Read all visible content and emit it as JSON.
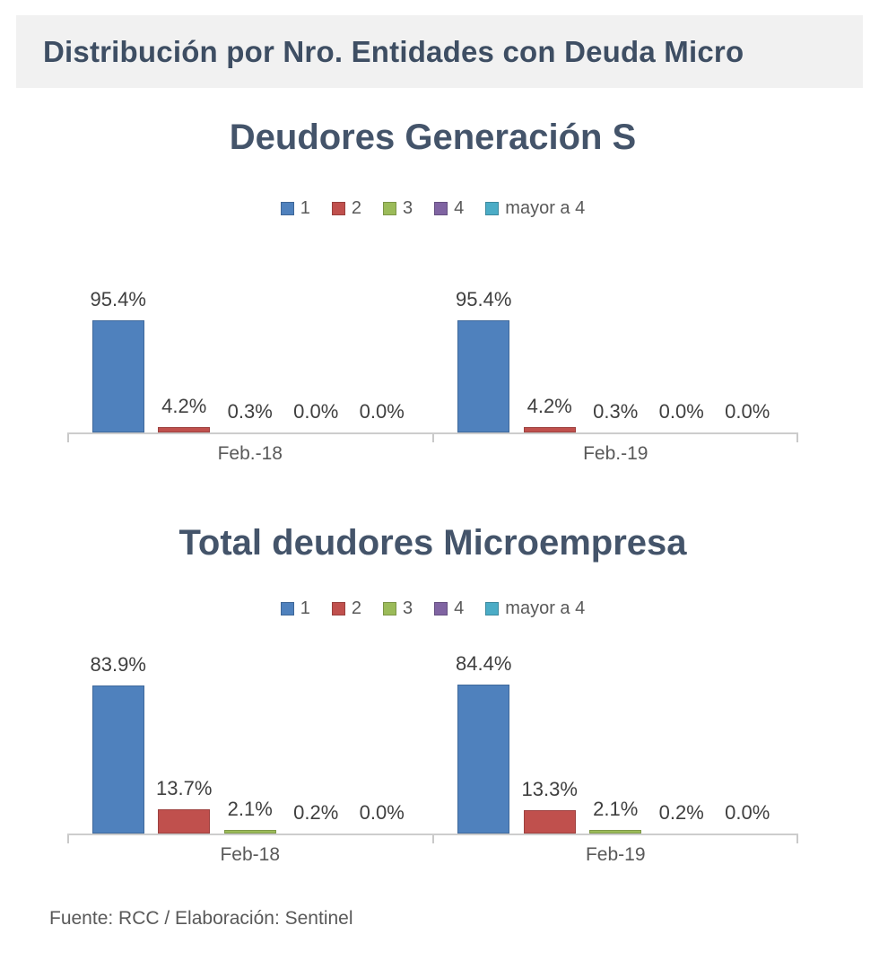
{
  "header": {
    "title": "Distribución por Nro. Entidades con Deuda Micro"
  },
  "footer": {
    "text": "Fuente: RCC / Elaboración: Sentinel"
  },
  "colors": {
    "header_text": "#3E4E63",
    "title_text": "#44546A",
    "axis": "#CDCDCD",
    "series": [
      "#4F81BD",
      "#C0504D",
      "#9BBB59",
      "#8064A2",
      "#4BACC6"
    ]
  },
  "chart_data": [
    {
      "type": "bar",
      "title": "Deudores Generación S",
      "categories": [
        "Feb.-18",
        "Feb.-19"
      ],
      "series": [
        {
          "name": "1",
          "color": "#4F81BD",
          "values": [
            95.4,
            95.4
          ]
        },
        {
          "name": "2",
          "color": "#C0504D",
          "values": [
            4.2,
            4.2
          ]
        },
        {
          "name": "3",
          "color": "#9BBB59",
          "values": [
            0.3,
            0.3
          ]
        },
        {
          "name": "4",
          "color": "#8064A2",
          "values": [
            0.0,
            0.0
          ]
        },
        {
          "name": "mayor a 4",
          "color": "#4BACC6",
          "values": [
            0.0,
            0.0
          ]
        }
      ],
      "labels": [
        [
          "95.4%",
          "4.2%",
          "0.3%",
          "0.0%",
          "0.0%"
        ],
        [
          "95.4%",
          "4.2%",
          "0.3%",
          "0.0%",
          "0.0%"
        ]
      ],
      "ylim": [
        0,
        100
      ],
      "grid": false,
      "legend_position": "top",
      "value_unit": "%"
    },
    {
      "type": "bar",
      "title": "Total deudores Microempresa",
      "categories": [
        "Feb-18",
        "Feb-19"
      ],
      "series": [
        {
          "name": "1",
          "color": "#4F81BD",
          "values": [
            83.9,
            84.4
          ]
        },
        {
          "name": "2",
          "color": "#C0504D",
          "values": [
            13.7,
            13.3
          ]
        },
        {
          "name": "3",
          "color": "#9BBB59",
          "values": [
            2.1,
            2.1
          ]
        },
        {
          "name": "4",
          "color": "#8064A2",
          "values": [
            0.2,
            0.2
          ]
        },
        {
          "name": "mayor a 4",
          "color": "#4BACC6",
          "values": [
            0.0,
            0.0
          ]
        }
      ],
      "labels": [
        [
          "83.9%",
          "13.7%",
          "2.1%",
          "0.2%",
          "0.0%"
        ],
        [
          "84.4%",
          "13.3%",
          "2.1%",
          "0.2%",
          "0.0%"
        ]
      ],
      "ylim": [
        0,
        100
      ],
      "grid": false,
      "legend_position": "top",
      "value_unit": "%"
    }
  ]
}
